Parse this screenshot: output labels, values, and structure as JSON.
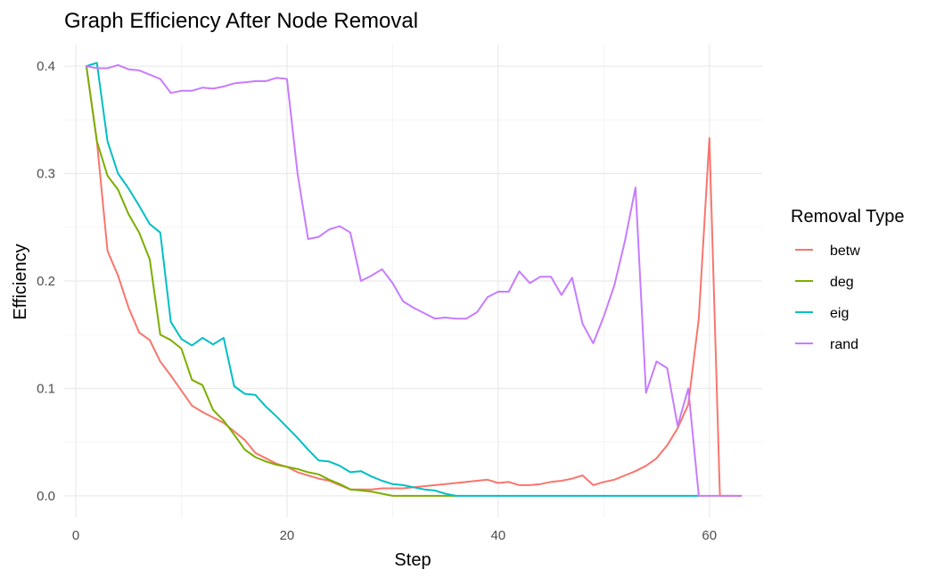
{
  "chart_data": {
    "type": "line",
    "title": "Graph Efficiency After Node Removal",
    "xlabel": "Step",
    "ylabel": "Efficiency",
    "xlim": [
      -1.1,
      65
    ],
    "ylim": [
      -0.02,
      0.42
    ],
    "x_ticks": [
      0,
      20,
      40,
      60
    ],
    "y_ticks": [
      0.0,
      0.1,
      0.2,
      0.3,
      0.4
    ],
    "x_tick_labels": [
      "0",
      "20",
      "40",
      "60"
    ],
    "y_tick_labels": [
      "0.0",
      "0.1",
      "0.2",
      "0.3",
      "0.4"
    ],
    "grid": true,
    "legend": {
      "title": "Removal Type",
      "position": "right"
    },
    "series": [
      {
        "name": "betw",
        "color": "#F8766D",
        "points": [
          [
            1,
            0.4
          ],
          [
            2,
            0.33
          ],
          [
            3,
            0.228
          ],
          [
            4,
            0.205
          ],
          [
            5,
            0.175
          ],
          [
            6,
            0.152
          ],
          [
            7,
            0.145
          ],
          [
            8,
            0.125
          ],
          [
            9,
            0.112
          ],
          [
            10,
            0.098
          ],
          [
            11,
            0.084
          ],
          [
            12,
            0.078
          ],
          [
            13,
            0.073
          ],
          [
            14,
            0.068
          ],
          [
            15,
            0.06
          ],
          [
            16,
            0.052
          ],
          [
            17,
            0.04
          ],
          [
            18,
            0.035
          ],
          [
            19,
            0.03
          ],
          [
            20,
            0.027
          ],
          [
            21,
            0.022
          ],
          [
            22,
            0.019
          ],
          [
            23,
            0.016
          ],
          [
            24,
            0.014
          ],
          [
            25,
            0.01
          ],
          [
            26,
            0.006
          ],
          [
            27,
            0.006
          ],
          [
            28,
            0.006
          ],
          [
            29,
            0.007
          ],
          [
            30,
            0.007
          ],
          [
            31,
            0.007
          ],
          [
            32,
            0.008
          ],
          [
            33,
            0.009
          ],
          [
            34,
            0.01
          ],
          [
            35,
            0.011
          ],
          [
            36,
            0.012
          ],
          [
            37,
            0.013
          ],
          [
            38,
            0.014
          ],
          [
            39,
            0.015
          ],
          [
            40,
            0.012
          ],
          [
            41,
            0.013
          ],
          [
            42,
            0.01
          ],
          [
            43,
            0.01
          ],
          [
            44,
            0.011
          ],
          [
            45,
            0.013
          ],
          [
            46,
            0.014
          ],
          [
            47,
            0.016
          ],
          [
            48,
            0.019
          ],
          [
            49,
            0.01
          ],
          [
            50,
            0.013
          ],
          [
            51,
            0.015
          ],
          [
            52,
            0.019
          ],
          [
            53,
            0.023
          ],
          [
            54,
            0.028
          ],
          [
            55,
            0.035
          ],
          [
            56,
            0.047
          ],
          [
            57,
            0.063
          ],
          [
            58,
            0.085
          ],
          [
            59,
            0.165
          ],
          [
            60,
            0.333
          ],
          [
            61,
            0.0
          ],
          [
            62,
            0.0
          ],
          [
            63,
            0.0
          ]
        ]
      },
      {
        "name": "deg",
        "color": "#7CAE00",
        "points": [
          [
            1,
            0.4
          ],
          [
            2,
            0.33
          ],
          [
            3,
            0.298
          ],
          [
            4,
            0.285
          ],
          [
            5,
            0.262
          ],
          [
            6,
            0.245
          ],
          [
            7,
            0.22
          ],
          [
            8,
            0.15
          ],
          [
            9,
            0.145
          ],
          [
            10,
            0.137
          ],
          [
            11,
            0.108
          ],
          [
            12,
            0.103
          ],
          [
            13,
            0.08
          ],
          [
            14,
            0.07
          ],
          [
            15,
            0.057
          ],
          [
            16,
            0.043
          ],
          [
            17,
            0.036
          ],
          [
            18,
            0.032
          ],
          [
            19,
            0.029
          ],
          [
            20,
            0.027
          ],
          [
            21,
            0.025
          ],
          [
            22,
            0.022
          ],
          [
            23,
            0.02
          ],
          [
            24,
            0.015
          ],
          [
            25,
            0.011
          ],
          [
            26,
            0.006
          ],
          [
            27,
            0.005
          ],
          [
            28,
            0.004
          ],
          [
            29,
            0.002
          ],
          [
            30,
            0.0
          ],
          [
            31,
            0.0
          ],
          [
            32,
            0.0
          ],
          [
            33,
            0.0
          ],
          [
            34,
            0.0
          ],
          [
            35,
            0.0
          ],
          [
            36,
            0.0
          ]
        ]
      },
      {
        "name": "eig",
        "color": "#00BFC4",
        "points": [
          [
            1,
            0.4
          ],
          [
            2,
            0.403
          ],
          [
            3,
            0.33
          ],
          [
            4,
            0.3
          ],
          [
            5,
            0.286
          ],
          [
            6,
            0.27
          ],
          [
            7,
            0.253
          ],
          [
            8,
            0.245
          ],
          [
            9,
            0.162
          ],
          [
            10,
            0.146
          ],
          [
            11,
            0.14
          ],
          [
            12,
            0.147
          ],
          [
            13,
            0.141
          ],
          [
            14,
            0.147
          ],
          [
            15,
            0.102
          ],
          [
            16,
            0.095
          ],
          [
            17,
            0.094
          ],
          [
            18,
            0.083
          ],
          [
            19,
            0.074
          ],
          [
            20,
            0.064
          ],
          [
            21,
            0.054
          ],
          [
            22,
            0.043
          ],
          [
            23,
            0.033
          ],
          [
            24,
            0.032
          ],
          [
            25,
            0.028
          ],
          [
            26,
            0.022
          ],
          [
            27,
            0.023
          ],
          [
            28,
            0.018
          ],
          [
            29,
            0.014
          ],
          [
            30,
            0.011
          ],
          [
            31,
            0.01
          ],
          [
            32,
            0.008
          ],
          [
            33,
            0.006
          ],
          [
            34,
            0.005
          ],
          [
            35,
            0.002
          ],
          [
            36,
            0.0
          ],
          [
            37,
            0.0
          ],
          [
            38,
            0.0
          ],
          [
            39,
            0.0
          ],
          [
            40,
            0.0
          ],
          [
            41,
            0.0
          ],
          [
            42,
            0.0
          ],
          [
            43,
            0.0
          ],
          [
            44,
            0.0
          ],
          [
            45,
            0.0
          ],
          [
            46,
            0.0
          ],
          [
            47,
            0.0
          ],
          [
            48,
            0.0
          ],
          [
            49,
            0.0
          ],
          [
            50,
            0.0
          ],
          [
            51,
            0.0
          ],
          [
            52,
            0.0
          ],
          [
            53,
            0.0
          ],
          [
            54,
            0.0
          ],
          [
            55,
            0.0
          ],
          [
            56,
            0.0
          ],
          [
            57,
            0.0
          ],
          [
            58,
            0.0
          ],
          [
            59,
            0.0
          ]
        ]
      },
      {
        "name": "rand",
        "color": "#C77CFF",
        "points": [
          [
            1,
            0.4
          ],
          [
            2,
            0.398
          ],
          [
            3,
            0.398
          ],
          [
            4,
            0.401
          ],
          [
            5,
            0.397
          ],
          [
            6,
            0.396
          ],
          [
            7,
            0.392
          ],
          [
            8,
            0.388
          ],
          [
            9,
            0.375
          ],
          [
            10,
            0.377
          ],
          [
            11,
            0.377
          ],
          [
            12,
            0.38
          ],
          [
            13,
            0.379
          ],
          [
            14,
            0.381
          ],
          [
            15,
            0.384
          ],
          [
            16,
            0.385
          ],
          [
            17,
            0.386
          ],
          [
            18,
            0.386
          ],
          [
            19,
            0.389
          ],
          [
            20,
            0.388
          ],
          [
            21,
            0.3
          ],
          [
            22,
            0.239
          ],
          [
            23,
            0.241
          ],
          [
            24,
            0.248
          ],
          [
            25,
            0.251
          ],
          [
            26,
            0.245
          ],
          [
            27,
            0.2
          ],
          [
            28,
            0.205
          ],
          [
            29,
            0.211
          ],
          [
            30,
            0.198
          ],
          [
            31,
            0.181
          ],
          [
            32,
            0.175
          ],
          [
            33,
            0.17
          ],
          [
            34,
            0.165
          ],
          [
            35,
            0.166
          ],
          [
            36,
            0.165
          ],
          [
            37,
            0.165
          ],
          [
            38,
            0.171
          ],
          [
            39,
            0.185
          ],
          [
            40,
            0.19
          ],
          [
            41,
            0.19
          ],
          [
            42,
            0.209
          ],
          [
            43,
            0.198
          ],
          [
            44,
            0.204
          ],
          [
            45,
            0.204
          ],
          [
            46,
            0.187
          ],
          [
            47,
            0.203
          ],
          [
            48,
            0.16
          ],
          [
            49,
            0.142
          ],
          [
            50,
            0.167
          ],
          [
            51,
            0.196
          ],
          [
            52,
            0.237
          ],
          [
            53,
            0.287
          ],
          [
            54,
            0.096
          ],
          [
            55,
            0.125
          ],
          [
            56,
            0.119
          ],
          [
            57,
            0.065
          ],
          [
            58,
            0.1
          ],
          [
            59,
            0.0
          ],
          [
            60,
            0.0
          ],
          [
            61,
            0.0
          ],
          [
            62,
            0.0
          ],
          [
            63,
            0.0
          ]
        ]
      }
    ]
  }
}
